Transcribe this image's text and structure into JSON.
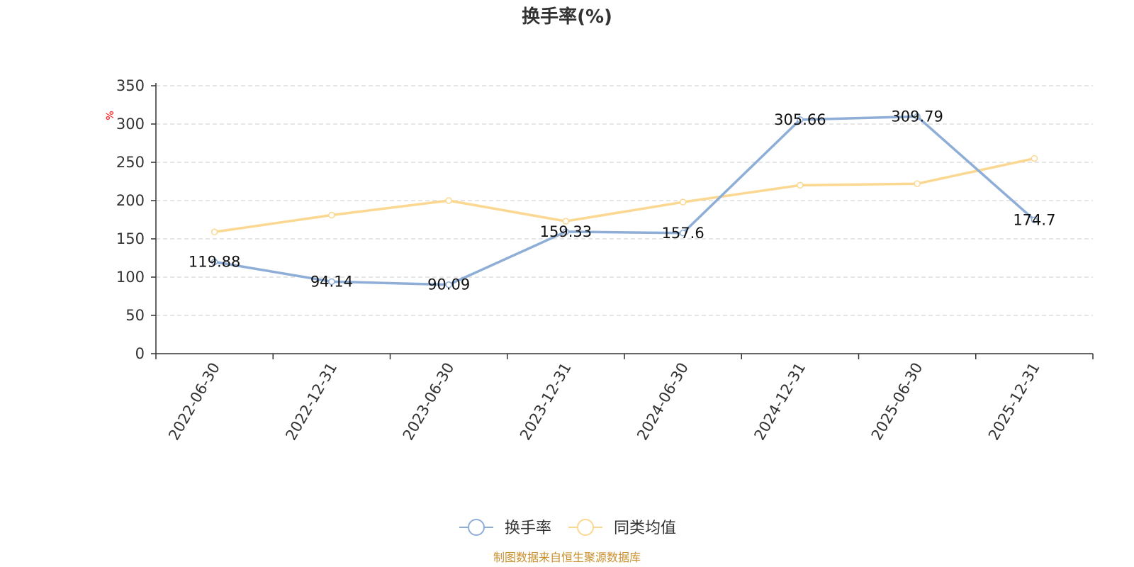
{
  "chart_data": {
    "type": "line",
    "title": "换手率(%)",
    "ylabel": "%",
    "xlabel": "",
    "ylim": [
      0,
      350
    ],
    "yticks": [
      0,
      50,
      100,
      150,
      200,
      250,
      300,
      350
    ],
    "categories": [
      "2022-06-30",
      "2022-12-31",
      "2023-06-30",
      "2023-12-31",
      "2024-06-30",
      "2024-12-31",
      "2025-06-30",
      "2025-12-31"
    ],
    "series": [
      {
        "name": "换手率",
        "color": "#8eaed8",
        "values": [
          119.88,
          94.14,
          90.09,
          159.33,
          157.6,
          305.66,
          309.79,
          174.7
        ],
        "labels": [
          "119.88",
          "94.14",
          "90.09",
          "159.33",
          "157.6",
          "305.66",
          "309.79",
          "174.7"
        ],
        "show_labels": true
      },
      {
        "name": "同类均值",
        "color": "#fbd892",
        "values": [
          159,
          181,
          200,
          173,
          198,
          220,
          222,
          255
        ],
        "show_labels": false
      }
    ],
    "grid": true,
    "legend_position": "bottom-center"
  },
  "source_text": "制图数据来自恒生聚源数据库",
  "colors": {
    "axis": "#333333",
    "grid": "#cccccc",
    "unit": "#ff0000",
    "source": "#c9902d"
  }
}
